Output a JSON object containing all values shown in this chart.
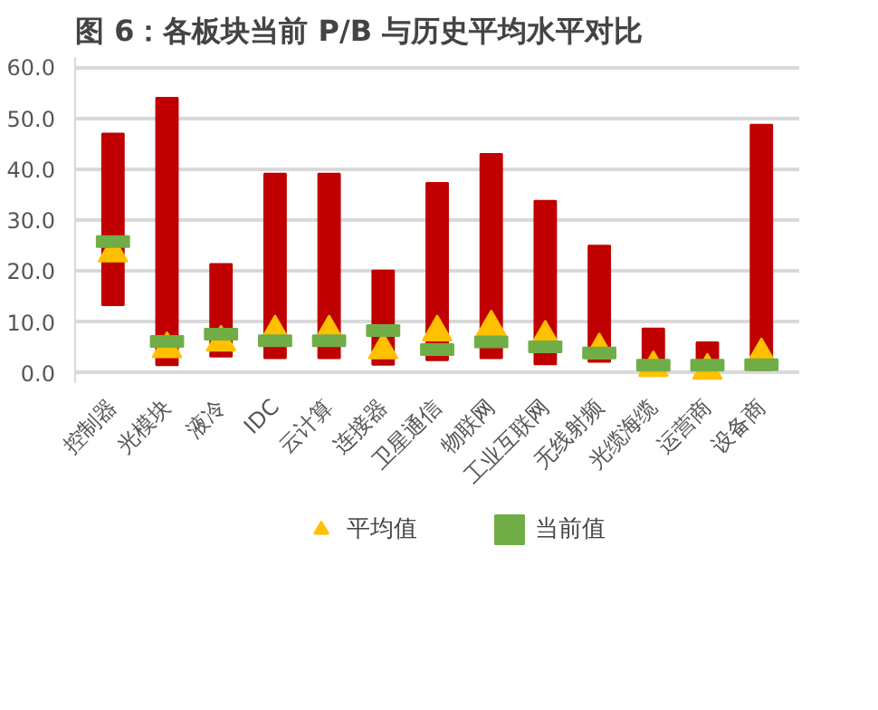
{
  "chart_data": {
    "type": "bar",
    "title": "图 6：各板块当前 P/B 与历史平均水平对比",
    "categories": [
      "控制器",
      "光模块",
      "液冷",
      "IDC",
      "云计算",
      "连接器",
      "卫星通信",
      "物联网",
      "工业互联网",
      "无线射频",
      "光缆海缆",
      "运营商",
      "设备商"
    ],
    "series": [
      {
        "color": "#c00000",
        "base": [
          13.3,
          1.5,
          3.2,
          2.9,
          2.9,
          1.6,
          2.5,
          2.9,
          1.7,
          2.2,
          0.4,
          0.6,
          0.6
        ],
        "values": [
          33.7,
          52.5,
          18.2,
          36.2,
          36.2,
          18.5,
          34.8,
          40.1,
          32.1,
          22.8,
          8.3,
          5.4,
          48.1
        ]
      },
      {
        "type": "scatter",
        "name": "平均值",
        "color": "#ffc000",
        "marker": "triangle",
        "values": [
          23.5,
          4.7,
          6.0,
          8.0,
          8.0,
          4.5,
          8.0,
          9.0,
          7.0,
          4.5,
          1.0,
          0.5,
          3.5
        ]
      },
      {
        "type": "scatter",
        "name": "当前值",
        "color": "#70ad47",
        "marker": "square",
        "values": [
          25.8,
          6.2,
          7.6,
          6.3,
          6.3,
          8.3,
          4.6,
          6.1,
          5.1,
          3.9,
          1.5,
          1.5,
          1.6
        ]
      }
    ],
    "ylim": [
      -2,
      62
    ],
    "yticks": [
      {
        "value": 0,
        "label": "0.0"
      },
      {
        "value": 10,
        "label": "10.0"
      },
      {
        "value": 20,
        "label": "20.0"
      },
      {
        "value": 30,
        "label": "30.0"
      },
      {
        "value": 40,
        "label": "40.0"
      },
      {
        "value": 50,
        "label": "50.0"
      },
      {
        "value": 60,
        "label": "60.0"
      }
    ],
    "grid": "y",
    "legend": "bottom"
  }
}
